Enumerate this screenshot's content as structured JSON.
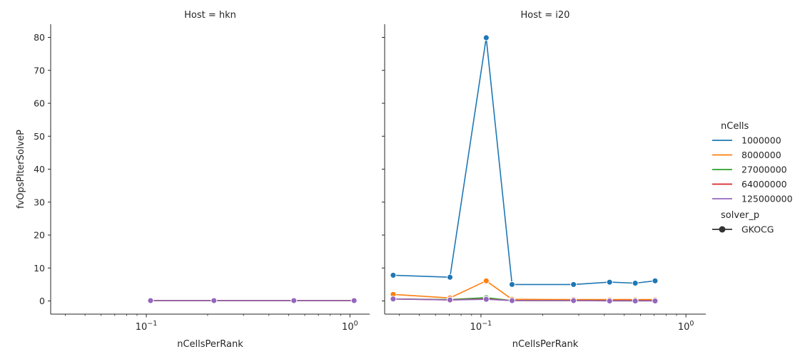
{
  "chart_data": [
    {
      "type": "line",
      "title": "Host = hkn",
      "xlabel": "nCellsPerRank",
      "ylabel": "fvOpsPIterSolveP",
      "xscale": "log",
      "xlim": [
        0.0339,
        1.25
      ],
      "ylim": [
        -4,
        84
      ],
      "x_ticks": [
        {
          "value": 0.1,
          "base": "10",
          "exp": "−1"
        },
        {
          "value": 1,
          "base": "10",
          "exp": "0"
        }
      ],
      "y_ticks": [
        0,
        10,
        20,
        30,
        40,
        50,
        60,
        70,
        80
      ],
      "grid": false,
      "series": [
        {
          "name": "1000000",
          "color": "#1f77b4",
          "x": [
            0.1049,
            0.2148,
            0.5303,
            1.0483
          ],
          "y": [
            0.1,
            0.1,
            0.1,
            0.1
          ]
        },
        {
          "name": "8000000",
          "color": "#ff7f0e",
          "x": [
            0.1049,
            0.2148,
            0.5303,
            1.0483
          ],
          "y": [
            0.1,
            0.1,
            0.1,
            0.1
          ]
        },
        {
          "name": "27000000",
          "color": "#2ca02c",
          "x": [
            0.1049,
            0.2148,
            0.5303,
            1.0483
          ],
          "y": [
            0.1,
            0.1,
            0.1,
            0.1
          ]
        },
        {
          "name": "64000000",
          "color": "#d62728",
          "x": [
            0.1049,
            0.2148,
            0.5303,
            1.0483
          ],
          "y": [
            0.1,
            0.1,
            0.1,
            0.1
          ]
        },
        {
          "name": "125000000",
          "color": "#9467bd",
          "x": [
            0.1049,
            0.2148,
            0.5303,
            1.0483
          ],
          "y": [
            0.1,
            0.1,
            0.1,
            0.1
          ]
        }
      ]
    },
    {
      "type": "line",
      "title": "Host = i20",
      "xlabel": "nCellsPerRank",
      "ylabel": "",
      "xscale": "log",
      "xlim": [
        0.0339,
        1.25
      ],
      "ylim": [
        -4,
        84
      ],
      "x_ticks": [
        {
          "value": 0.1,
          "base": "10",
          "exp": "−1"
        },
        {
          "value": 1,
          "base": "10",
          "exp": "0"
        }
      ],
      "y_ticks": [
        0,
        10,
        20,
        30,
        40,
        50,
        60,
        70,
        80
      ],
      "grid": false,
      "series": [
        {
          "name": "1000000",
          "color": "#1f77b4",
          "x": [
            0.0373,
            0.0706,
            0.1061,
            0.1418,
            0.2829,
            0.4242,
            0.5659,
            0.7072
          ],
          "y": [
            7.8,
            7.2,
            79.9,
            5.0,
            5.0,
            5.7,
            5.4,
            6.1
          ]
        },
        {
          "name": "8000000",
          "color": "#ff7f0e",
          "x": [
            0.0373,
            0.0706,
            0.1061,
            0.1418,
            0.2829,
            0.4242,
            0.5659,
            0.7072
          ],
          "y": [
            2.0,
            0.9,
            6.1,
            0.5,
            0.4,
            0.4,
            0.4,
            0.4
          ]
        },
        {
          "name": "27000000",
          "color": "#2ca02c",
          "x": [
            0.0373,
            0.0706,
            0.1061,
            0.1418,
            0.2829,
            0.4242,
            0.5659,
            0.7072
          ],
          "y": [
            0.6,
            0.4,
            1.0,
            0.1,
            0.1,
            0.1,
            0.1,
            0.1
          ]
        },
        {
          "name": "64000000",
          "color": "#d62728",
          "x": [
            0.0373,
            0.0706,
            0.1061,
            0.1418,
            0.2829,
            0.4242,
            0.5659,
            0.7072
          ],
          "y": [
            0.6,
            0.3,
            0.6,
            0.1,
            0.1,
            0.1,
            0.1,
            0.1
          ]
        },
        {
          "name": "125000000",
          "color": "#9467bd",
          "x": [
            0.0373,
            0.0706,
            0.1061,
            0.1418,
            0.2829,
            0.4242,
            0.5659,
            0.7072
          ],
          "y": [
            0.6,
            0.3,
            0.5,
            0.1,
            0.1,
            0.0,
            0.0,
            0.0
          ]
        }
      ]
    }
  ],
  "legend": {
    "placement": "right",
    "hue_title": "nCells",
    "hue_entries": [
      {
        "label": "1000000",
        "color": "#1f77b4"
      },
      {
        "label": "8000000",
        "color": "#ff7f0e"
      },
      {
        "label": "27000000",
        "color": "#2ca02c"
      },
      {
        "label": "64000000",
        "color": "#d62728"
      },
      {
        "label": "125000000",
        "color": "#9467bd"
      }
    ],
    "style_title": "solver_p",
    "style_entries": [
      {
        "label": "GKOCG",
        "color": "#333333",
        "marker": "circle"
      }
    ]
  }
}
